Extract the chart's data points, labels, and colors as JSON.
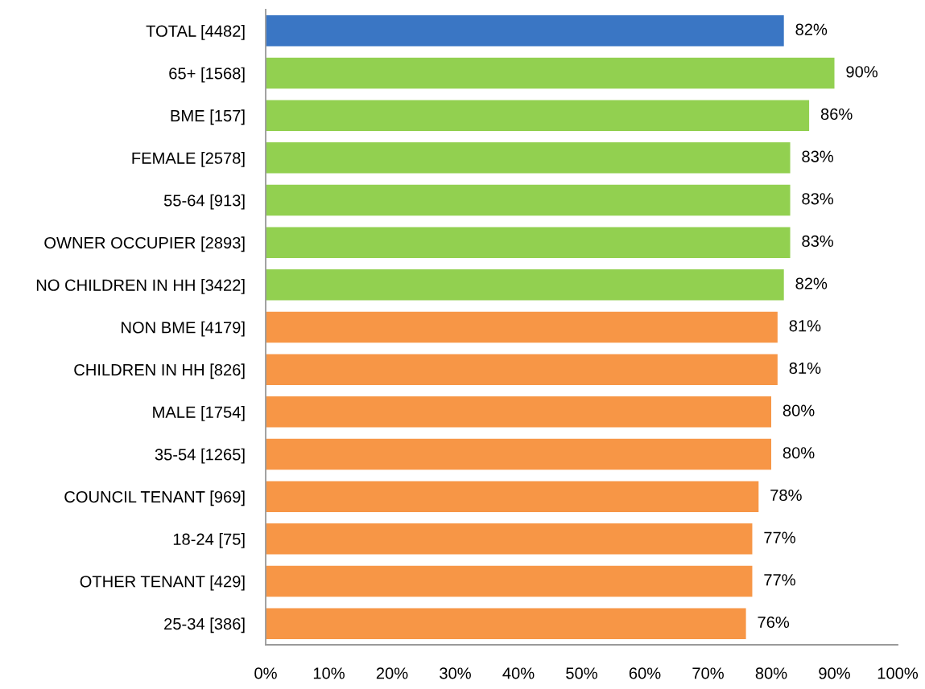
{
  "chart_data": {
    "type": "bar",
    "orientation": "horizontal",
    "categories": [
      "TOTAL [4482]",
      "65+ [1568]",
      "BME [157]",
      "FEMALE [2578]",
      "55-64 [913]",
      "OWNER OCCUPIER [2893]",
      "NO CHILDREN IN HH [3422]",
      "NON BME [4179]",
      "CHILDREN IN HH [826]",
      "MALE [1754]",
      "35-54 [1265]",
      "COUNCIL TENANT [969]",
      "18-24 [75]",
      "OTHER TENANT [429]",
      "25-34 [386]"
    ],
    "values": [
      82,
      90,
      86,
      83,
      83,
      83,
      82,
      81,
      81,
      80,
      80,
      78,
      77,
      77,
      76
    ],
    "value_labels": [
      "82%",
      "90%",
      "86%",
      "83%",
      "83%",
      "83%",
      "82%",
      "81%",
      "81%",
      "80%",
      "80%",
      "78%",
      "77%",
      "77%",
      "76%"
    ],
    "colors": [
      "#3a76c4",
      "#92d050",
      "#92d050",
      "#92d050",
      "#92d050",
      "#92d050",
      "#92d050",
      "#f79646",
      "#f79646",
      "#f79646",
      "#f79646",
      "#f79646",
      "#f79646",
      "#f79646",
      "#f79646"
    ],
    "xlim": [
      0,
      100
    ],
    "xticks": [
      {
        "value": 0,
        "label": "0%"
      },
      {
        "value": 10,
        "label": "10%"
      },
      {
        "value": 20,
        "label": "20%"
      },
      {
        "value": 30,
        "label": "30%"
      },
      {
        "value": 40,
        "label": "40%"
      },
      {
        "value": 50,
        "label": "50%"
      },
      {
        "value": 60,
        "label": "60%"
      },
      {
        "value": 70,
        "label": "70%"
      },
      {
        "value": 80,
        "label": "80%"
      },
      {
        "value": 90,
        "label": "90%"
      },
      {
        "value": 100,
        "label": "100%"
      }
    ],
    "grid": false,
    "legend": false
  }
}
